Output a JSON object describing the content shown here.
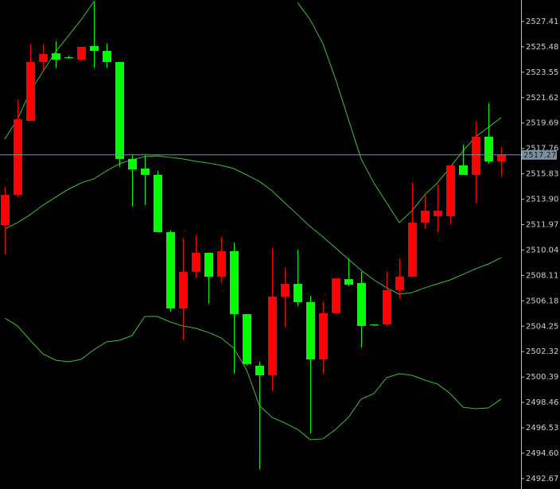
{
  "chart_data": {
    "type": "candlestick",
    "open": [
      2511.94,
      2514.24,
      2519.86,
      2524.33,
      2524.99,
      2524.69,
      2524.51,
      2525.54,
      2525.17,
      2524.33,
      2516.96,
      2516.23,
      2515.75,
      2511.4,
      2505.6,
      2508.38,
      2509.83,
      2508.01,
      2509.95,
      2505.17,
      2501.25,
      2500.52,
      2506.5,
      2507.47,
      2506.08,
      2501.73,
      2505.24,
      2507.83,
      2507.53,
      2504.39,
      2504.39,
      2506.99,
      2508.01,
      2512.12,
      2512.61,
      2512.61,
      2516.47,
      2515.75,
      2518.65,
      2516.78
    ],
    "high": [
      2514.84,
      2521.49,
      2525.72,
      2525.72,
      2525.9,
      2524.81,
      2525.48,
      2528.92,
      2525.72,
      2524.33,
      2517.26,
      2517.26,
      2516.05,
      2511.52,
      2510.91,
      2511.22,
      2509.83,
      2511.04,
      2510.61,
      2505.17,
      2501.55,
      2510.19,
      2508.68,
      2510.07,
      2506.56,
      2506.08,
      2507.89,
      2509.4,
      2508.38,
      2504.39,
      2508.38,
      2509.4,
      2515.14,
      2514.24,
      2515.02,
      2516.47,
      2518.04,
      2519.8,
      2521.19,
      2517.86
    ],
    "low": [
      2509.71,
      2514.06,
      2519.86,
      2523.6,
      2523.9,
      2524.57,
      2524.45,
      2523.9,
      2523.9,
      2516.35,
      2513.33,
      2513.45,
      2511.4,
      2505.36,
      2503.18,
      2507.89,
      2505.96,
      2507.59,
      2500.64,
      2501.25,
      2493.39,
      2499.31,
      2504.15,
      2505.78,
      2496.11,
      2500.64,
      2505.17,
      2507.29,
      2502.64,
      2504.27,
      2504.27,
      2506.38,
      2508.01,
      2511.64,
      2511.4,
      2512.0,
      2515.75,
      2513.63,
      2516.59,
      2515.63
    ],
    "close": [
      2514.24,
      2519.98,
      2524.33,
      2524.93,
      2524.51,
      2524.69,
      2525.48,
      2525.17,
      2524.33,
      2516.96,
      2516.17,
      2515.75,
      2511.4,
      2505.6,
      2508.38,
      2509.83,
      2508.01,
      2509.95,
      2505.17,
      2501.37,
      2500.52,
      2506.5,
      2507.47,
      2506.08,
      2501.73,
      2505.24,
      2507.89,
      2507.41,
      2504.27,
      2504.33,
      2506.99,
      2508.01,
      2512.12,
      2513.03,
      2513.03,
      2516.47,
      2515.75,
      2518.65,
      2516.78,
      2517.27
    ],
    "up_color": "#ff0000",
    "down_color": "#00ff00",
    "overlays": [
      {
        "color": "#3fbf3f",
        "values": [
          2518.47,
          2519.98,
          2522.09,
          2523.6,
          2525.11,
          2526.32,
          2527.53,
          2528.92,
          null,
          null,
          null,
          null,
          null,
          null,
          null,
          null,
          null,
          null,
          null,
          null,
          null,
          null,
          null,
          2528.86,
          2527.53,
          2525.72,
          2523.0,
          2519.98,
          2516.96,
          2515.14,
          2513.63,
          2512.12,
          2513.03,
          2514.24,
          2515.14,
          2516.35,
          2517.56,
          2518.65,
          2519.37,
          2520.1
        ]
      },
      {
        "color": "#3fbf3f",
        "values": [
          2511.64,
          2512.12,
          2512.73,
          2513.45,
          2514.06,
          2514.66,
          2515.14,
          2515.45,
          2516.05,
          2516.59,
          2516.9,
          2517.14,
          2517.2,
          2517.08,
          2516.96,
          2516.78,
          2516.65,
          2516.47,
          2516.23,
          2515.75,
          2515.26,
          2514.54,
          2513.63,
          2512.73,
          2511.82,
          2511.04,
          2510.19,
          2509.34,
          2508.5,
          2507.77,
          2507.17,
          2506.68,
          2506.81,
          2507.17,
          2507.47,
          2507.77,
          2508.19,
          2508.62,
          2508.98,
          2509.46
        ]
      },
      {
        "color": "#3fbf3f",
        "values": [
          2504.87,
          2504.27,
          2503.18,
          2502.15,
          2501.67,
          2501.55,
          2501.73,
          2502.46,
          2503.06,
          2503.18,
          2503.54,
          2504.99,
          2504.99,
          2504.57,
          2504.27,
          2504.09,
          2503.78,
          2503.36,
          2502.58,
          2500.94,
          2498.23,
          2497.32,
          2496.9,
          2496.41,
          2495.63,
          2495.69,
          2496.41,
          2497.32,
          2498.71,
          2499.13,
          2500.34,
          2500.64,
          2500.52,
          2500.16,
          2499.86,
          2499.13,
          2498.1,
          2497.98,
          2498.04,
          2498.71
        ]
      }
    ],
    "last_price": 2517.27,
    "last_price_color": "#7f8fa0",
    "ylim": [
      2491.88,
      2529.04
    ],
    "yticks": [
      2527.41,
      2525.48,
      2523.55,
      2521.62,
      2519.69,
      2517.76,
      2515.83,
      {
        "value": 2513.9,
        "label": "2513.90"
      },
      2511.97,
      2510.04,
      2508.11,
      2506.18,
      2504.25,
      2502.32,
      2500.39,
      2498.46,
      2496.53,
      {
        "value": 2494.6,
        "label": "2494.60"
      },
      2492.67
    ]
  }
}
